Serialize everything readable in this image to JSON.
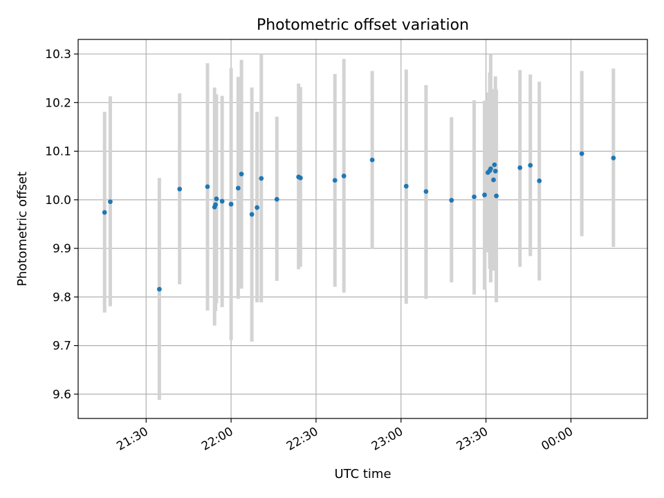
{
  "chart_data": {
    "type": "scatter",
    "title": "Photometric offset variation",
    "xlabel": "UTC time",
    "ylabel": "Photometric offset",
    "x_is_time": true,
    "xlim": [
      "21:06",
      "00:27"
    ],
    "ylim": [
      9.55,
      10.33
    ],
    "x_ticks": [
      "21:30",
      "22:00",
      "22:30",
      "23:00",
      "23:30",
      "00:00"
    ],
    "y_ticks": [
      "9.6",
      "9.7",
      "9.8",
      "9.9",
      "10.0",
      "10.1",
      "10.2",
      "10.3"
    ],
    "grid": true,
    "legend": "none",
    "colors": {
      "point": "#1f77b4",
      "error_bar": "#d3d3d3",
      "grid": "#b0b0b0"
    },
    "points": [
      {
        "t": "21:15:20",
        "y": 9.974,
        "ylo": 9.768,
        "yhi": 10.181
      },
      {
        "t": "21:17:20",
        "y": 9.996,
        "ylo": 9.781,
        "yhi": 10.213
      },
      {
        "t": "21:34:40",
        "y": 9.816,
        "ylo": 9.588,
        "yhi": 10.045
      },
      {
        "t": "21:41:50",
        "y": 10.022,
        "ylo": 9.826,
        "yhi": 10.219
      },
      {
        "t": "21:51:40",
        "y": 10.027,
        "ylo": 9.772,
        "yhi": 10.281
      },
      {
        "t": "21:54:10",
        "y": 9.985,
        "ylo": 9.741,
        "yhi": 10.231
      },
      {
        "t": "21:54:30",
        "y": 9.99,
        "ylo": 9.771,
        "yhi": 10.209
      },
      {
        "t": "21:54:50",
        "y": 10.002,
        "ylo": 9.787,
        "yhi": 10.217
      },
      {
        "t": "21:56:50",
        "y": 9.997,
        "ylo": 9.779,
        "yhi": 10.214
      },
      {
        "t": "22:00:00",
        "y": 9.991,
        "ylo": 9.711,
        "yhi": 10.271
      },
      {
        "t": "22:02:30",
        "y": 10.024,
        "ylo": 9.796,
        "yhi": 10.253
      },
      {
        "t": "22:03:40",
        "y": 10.053,
        "ylo": 9.817,
        "yhi": 10.288
      },
      {
        "t": "22:07:20",
        "y": 9.97,
        "ylo": 9.708,
        "yhi": 10.231
      },
      {
        "t": "22:09:10",
        "y": 9.984,
        "ylo": 9.789,
        "yhi": 10.181
      },
      {
        "t": "22:10:40",
        "y": 10.044,
        "ylo": 9.789,
        "yhi": 10.3
      },
      {
        "t": "22:16:10",
        "y": 10.001,
        "ylo": 9.833,
        "yhi": 10.171
      },
      {
        "t": "22:23:50",
        "y": 10.047,
        "ylo": 9.857,
        "yhi": 10.239
      },
      {
        "t": "22:24:30",
        "y": 10.045,
        "ylo": 9.862,
        "yhi": 10.232
      },
      {
        "t": "22:36:40",
        "y": 10.04,
        "ylo": 9.821,
        "yhi": 10.259
      },
      {
        "t": "22:39:50",
        "y": 10.049,
        "ylo": 9.809,
        "yhi": 10.29
      },
      {
        "t": "22:49:50",
        "y": 10.082,
        "ylo": 9.899,
        "yhi": 10.265
      },
      {
        "t": "23:01:50",
        "y": 10.028,
        "ylo": 9.786,
        "yhi": 10.268
      },
      {
        "t": "23:08:50",
        "y": 10.017,
        "ylo": 9.796,
        "yhi": 10.236
      },
      {
        "t": "23:17:50",
        "y": 9.999,
        "ylo": 9.83,
        "yhi": 10.17
      },
      {
        "t": "23:25:50",
        "y": 10.006,
        "ylo": 9.805,
        "yhi": 10.205
      },
      {
        "t": "23:29:30",
        "y": 10.01,
        "ylo": 9.815,
        "yhi": 10.204
      },
      {
        "t": "23:30:40",
        "y": 10.056,
        "ylo": 9.892,
        "yhi": 10.221
      },
      {
        "t": "23:31:20",
        "y": 10.06,
        "ylo": 9.858,
        "yhi": 10.262
      },
      {
        "t": "23:31:40",
        "y": 10.064,
        "ylo": 9.83,
        "yhi": 10.299
      },
      {
        "t": "23:32:40",
        "y": 10.041,
        "ylo": 9.854,
        "yhi": 10.228
      },
      {
        "t": "23:33:00",
        "y": 10.072,
        "ylo": 9.918,
        "yhi": 10.226
      },
      {
        "t": "23:33:20",
        "y": 10.059,
        "ylo": 9.864,
        "yhi": 10.254
      },
      {
        "t": "23:33:40",
        "y": 10.008,
        "ylo": 9.789,
        "yhi": 10.227
      },
      {
        "t": "23:42:00",
        "y": 10.066,
        "ylo": 9.862,
        "yhi": 10.267
      },
      {
        "t": "23:45:40",
        "y": 10.071,
        "ylo": 9.884,
        "yhi": 10.258
      },
      {
        "t": "23:48:50",
        "y": 10.039,
        "ylo": 9.834,
        "yhi": 10.243
      },
      {
        "t": "00:03:50",
        "y": 10.095,
        "ylo": 9.925,
        "yhi": 10.265
      },
      {
        "t": "00:15:00",
        "y": 10.086,
        "ylo": 9.903,
        "yhi": 10.27
      }
    ]
  }
}
